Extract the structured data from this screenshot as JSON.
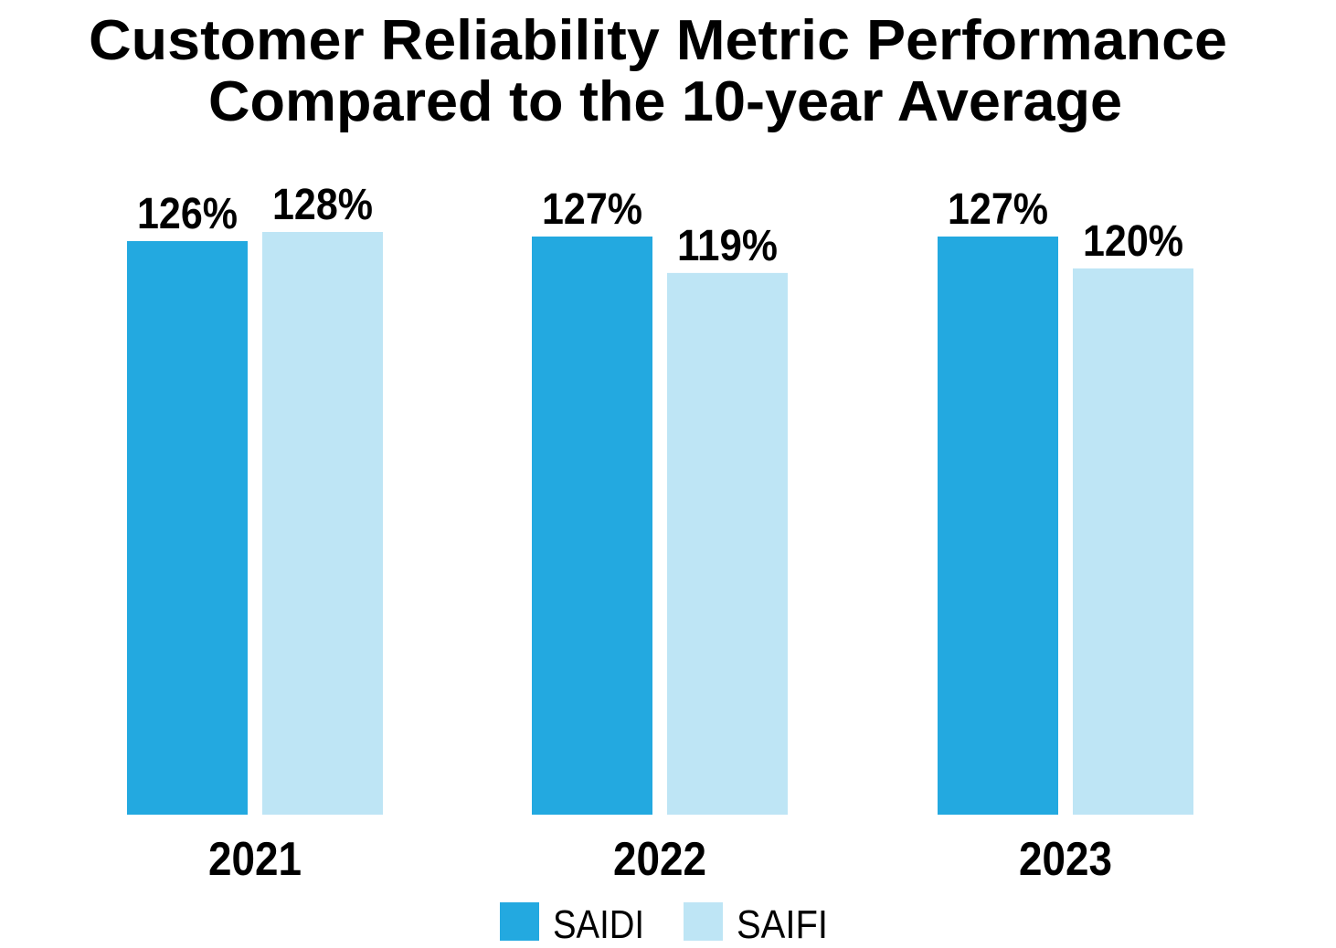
{
  "chart_data": {
    "type": "bar",
    "title": [
      "Customer Reliability Metric Performance",
      "Compared to the 10-year Average"
    ],
    "categories": [
      "2021",
      "2022",
      "2023"
    ],
    "series": [
      {
        "name": "SAIDI",
        "values": [
          126,
          127,
          127
        ],
        "labels": [
          "126%",
          "127%",
          "127%"
        ],
        "color": "#23a9e0"
      },
      {
        "name": "SAIFI",
        "values": [
          128,
          119,
          120
        ],
        "labels": [
          "128%",
          "119%",
          "120%"
        ],
        "color": "#bee5f5"
      }
    ],
    "ylim": [
      0,
      128
    ],
    "grid": false,
    "y_axis_visible": false,
    "legend_position": "bottom"
  }
}
